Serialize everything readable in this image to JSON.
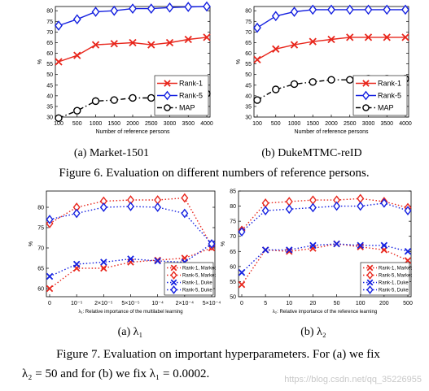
{
  "fig6": {
    "caption": "Figure 6. Evaluation on different numbers of reference persons.",
    "x_ticks": [
      "100",
      "500",
      "1000",
      "1500",
      "2000",
      "2500",
      "3000",
      "3500",
      "4000"
    ],
    "panels": [
      {
        "sublabel": "(a)  Market-1501",
        "xlabel": "Number of reference persons",
        "ylabel": "%",
        "ylim": [
          30,
          82
        ],
        "y_ticks": [
          30,
          35,
          40,
          45,
          50,
          55,
          60,
          65,
          70,
          75,
          80
        ],
        "legend_pos": "bottom-right",
        "series": [
          {
            "name": "Rank-1",
            "color": "#e8261c",
            "marker": "x",
            "dash": "solid",
            "values": [
              56,
              59,
              64,
              64.5,
              65,
              64,
              65,
              66.5,
              67.5
            ]
          },
          {
            "name": "Rank-5",
            "color": "#1420e0",
            "marker": "diamond",
            "dash": "solid",
            "values": [
              73,
              76,
              79.5,
              80,
              81,
              81,
              81.5,
              81.8,
              82
            ]
          },
          {
            "name": "MAP",
            "color": "#000000",
            "marker": "circle",
            "dash": "dashdot",
            "values": [
              29.5,
              33,
              37.5,
              38,
              39,
              39,
              39.5,
              39.5,
              41
            ]
          }
        ]
      },
      {
        "sublabel": "(b)  DukeMTMC-reID",
        "xlabel": "Number of reference persons",
        "ylabel": "%",
        "ylim": [
          30,
          82
        ],
        "y_ticks": [
          30,
          35,
          40,
          45,
          50,
          55,
          60,
          65,
          70,
          75,
          80
        ],
        "legend_pos": "bottom-right",
        "series": [
          {
            "name": "Rank-1",
            "color": "#e8261c",
            "marker": "x",
            "dash": "solid",
            "values": [
              57,
              62,
              64,
              65.5,
              66.5,
              67.5,
              67.5,
              67.5,
              67.5
            ]
          },
          {
            "name": "Rank-5",
            "color": "#1420e0",
            "marker": "diamond",
            "dash": "solid",
            "values": [
              72,
              77.5,
              79.5,
              80.5,
              80.5,
              80.5,
              80.5,
              80.5,
              80.5
            ]
          },
          {
            "name": "MAP",
            "color": "#000000",
            "marker": "circle",
            "dash": "dashdot",
            "values": [
              38,
              43,
              45.5,
              46.5,
              47.5,
              47.5,
              48,
              48,
              48
            ]
          }
        ]
      }
    ]
  },
  "fig7": {
    "caption_line1": "Figure 7.  Evaluation on important hyperparameters. For (a) we fix",
    "caption_line2": "λ₂ = 50 and for (b) we fix λ₁ = 0.0002.",
    "watermark": "https://blog.csdn.net/qq_35226955",
    "panels": [
      {
        "sublabel": "(a)  λ₁",
        "xlabel": "λ₁: Relative importance of the multilabel learning",
        "ylabel": "%",
        "x_ticks": [
          "0",
          "10⁻⁵",
          "2×10⁻⁵",
          "5×10⁻⁵",
          "10⁻⁴",
          "2×10⁻⁴",
          "5×10⁻⁴"
        ],
        "ylim": [
          58,
          84
        ],
        "y_ticks": [
          60,
          65,
          70,
          75,
          80
        ],
        "legend_pos": "bottom-right",
        "series": [
          {
            "name": "Rank-1, Market",
            "color": "#e8261c",
            "marker": "x",
            "dash": "dotted",
            "values": [
              60,
              65,
              65,
              66.5,
              67,
              67.5,
              70
            ]
          },
          {
            "name": "Rank-5, Market",
            "color": "#e8261c",
            "marker": "diamond",
            "dash": "dotted",
            "values": [
              76,
              80,
              81.5,
              81.8,
              81.8,
              82.3,
              70.5
            ]
          },
          {
            "name": "Rank-1, Duke",
            "color": "#1420e0",
            "marker": "x",
            "dash": "dotted",
            "values": [
              63,
              66,
              66.5,
              67.3,
              66.8,
              66.5,
              71
            ]
          },
          {
            "name": "Rank-5, Duke",
            "color": "#1420e0",
            "marker": "diamond",
            "dash": "dotted",
            "values": [
              77,
              78.5,
              80,
              80.2,
              80,
              78.5,
              71
            ]
          }
        ]
      },
      {
        "sublabel": "(b)  λ₂",
        "xlabel": "λ₂: Relative importance of the reference learning",
        "ylabel": "%",
        "x_ticks": [
          "0",
          "5",
          "10",
          "20",
          "50",
          "100",
          "200",
          "500"
        ],
        "ylim": [
          50,
          85
        ],
        "y_ticks": [
          50,
          55,
          60,
          65,
          70,
          75,
          80,
          85
        ],
        "legend_pos": "bottom-right",
        "series": [
          {
            "name": "Rank-1, Market",
            "color": "#e8261c",
            "marker": "x",
            "dash": "dotted",
            "values": [
              54,
              65.5,
              65,
              66,
              67.5,
              66.5,
              65.5,
              62
            ]
          },
          {
            "name": "Rank-5, Market",
            "color": "#e8261c",
            "marker": "diamond",
            "dash": "dotted",
            "values": [
              72,
              81,
              81.5,
              82,
              82,
              82.5,
              81.5,
              79.5
            ]
          },
          {
            "name": "Rank-1, Duke",
            "color": "#1420e0",
            "marker": "x",
            "dash": "dotted",
            "values": [
              58,
              65.5,
              65.5,
              67,
              67.5,
              67,
              67,
              65
            ]
          },
          {
            "name": "Rank-5, Duke",
            "color": "#1420e0",
            "marker": "diamond",
            "dash": "dotted",
            "values": [
              71.5,
              78.5,
              79,
              79.5,
              80,
              80,
              81,
              78.5
            ]
          }
        ]
      }
    ]
  }
}
